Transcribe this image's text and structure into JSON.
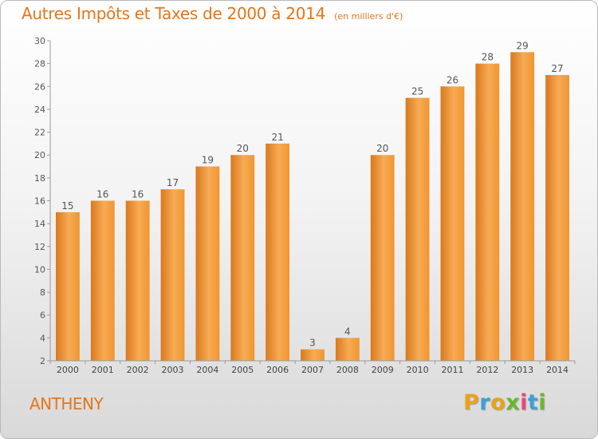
{
  "chart_data": {
    "type": "bar",
    "title": "Autres Impôts et Taxes de 2000 à 2014",
    "subtitle": "(en milliers d'€)",
    "categories": [
      "2000",
      "2001",
      "2002",
      "2003",
      "2004",
      "2005",
      "2006",
      "2007",
      "2008",
      "2009",
      "2010",
      "2011",
      "2012",
      "2013",
      "2014"
    ],
    "values": [
      15,
      16,
      16,
      17,
      19,
      20,
      21,
      3,
      4,
      20,
      25,
      26,
      28,
      29,
      27
    ],
    "data_labels": [
      "15",
      "16",
      "16",
      "17",
      "19",
      "20",
      "21",
      "3",
      "4",
      "20",
      "25",
      "26",
      "28",
      "29",
      "27"
    ],
    "ylim": [
      2,
      30
    ],
    "yticks": [
      2,
      4,
      6,
      8,
      10,
      12,
      14,
      16,
      18,
      20,
      22,
      24,
      26,
      28,
      30
    ],
    "grid": false,
    "bar_color": "#f0962f",
    "bar_color_light": "#f7ab55",
    "bar_color_dark": "#d9791d"
  },
  "commune": "ANTHENY",
  "logo": {
    "letters": [
      "P",
      "r",
      "o",
      "x",
      "i",
      "t",
      "i"
    ],
    "colors": [
      "#e8a21c",
      "#3aa0d8",
      "#e8a21c",
      "#6cb52d",
      "#e84a7a",
      "#3aa0d8",
      "#6cb52d"
    ]
  }
}
